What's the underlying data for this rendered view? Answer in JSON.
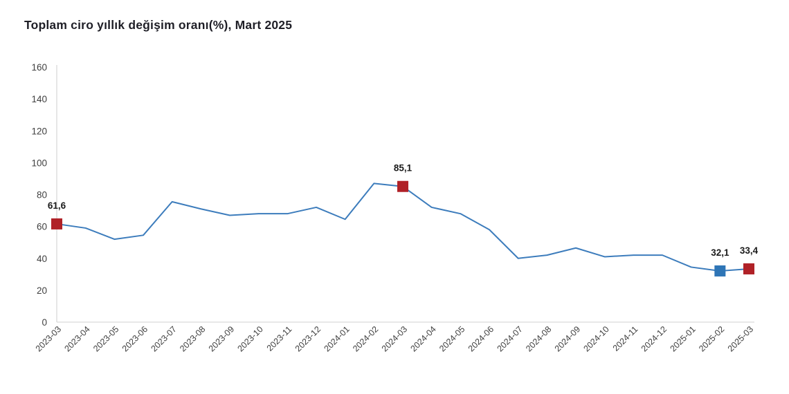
{
  "title": "Toplam ciro yıllık değişim oranı(%), Mart 2025",
  "colors": {
    "line": "#3c7cbc",
    "marker_red": "#b02127",
    "marker_blue": "#2e75b6",
    "axis_line": "#d9d9d9",
    "tick_text": "#3f3f3f",
    "data_label_text": "#1a1a1a",
    "title_text": "#1f1f27",
    "background": "#ffffff"
  },
  "chart_data": {
    "type": "line",
    "title": "Toplam ciro yıllık değişim oranı(%), Mart 2025",
    "xlabel": "",
    "ylabel": "",
    "x": [
      "2023-03",
      "2023-04",
      "2023-05",
      "2023-06",
      "2023-07",
      "2023-08",
      "2023-09",
      "2023-10",
      "2023-11",
      "2023-12",
      "2024-01",
      "2024-02",
      "2024-03",
      "2024-04",
      "2024-05",
      "2024-06",
      "2024-07",
      "2024-08",
      "2024-09",
      "2024-10",
      "2024-11",
      "2024-12",
      "2025-01",
      "2025-02",
      "2025-03"
    ],
    "values": [
      61.6,
      59,
      52,
      54.5,
      75.5,
      71,
      67,
      68,
      68,
      72,
      64.5,
      87,
      85.1,
      72,
      68,
      58,
      40,
      42,
      46.5,
      41,
      42,
      42,
      34.5,
      32.1,
      33.4
    ],
    "ylim": [
      0,
      160
    ],
    "yticks": [
      0,
      20,
      40,
      60,
      80,
      100,
      120,
      140,
      160
    ],
    "grid": false,
    "legend": "none",
    "x_tick_rotation": -45,
    "annotations": [
      {
        "x": "2023-03",
        "index": 0,
        "value": 61.6,
        "label": "61,6",
        "marker": "square",
        "marker_color": "#b02127"
      },
      {
        "x": "2024-03",
        "index": 12,
        "value": 85.1,
        "label": "85,1",
        "marker": "square",
        "marker_color": "#b02127"
      },
      {
        "x": "2025-02",
        "index": 23,
        "value": 32.1,
        "label": "32,1",
        "marker": "square",
        "marker_color": "#2e75b6"
      },
      {
        "x": "2025-03",
        "index": 24,
        "value": 33.4,
        "label": "33,4",
        "marker": "square",
        "marker_color": "#b02127"
      }
    ]
  }
}
